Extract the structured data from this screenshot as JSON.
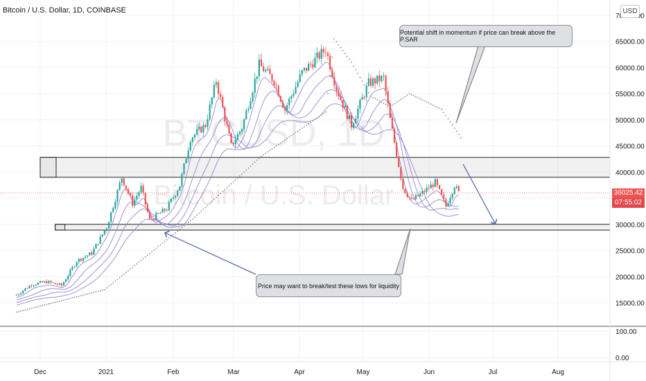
{
  "header": {
    "title": "Bitcoin / U.S. Dollar, 1D, COINBASE",
    "currency_badge": "USD"
  },
  "watermark": {
    "symbol": "BTCUSD, 1D",
    "name": "Bitcoin / U.S. Dollar"
  },
  "price_scale": {
    "upper_ticks": [
      "70000.00",
      "65000.00",
      "60000.00",
      "55000.00",
      "50000.00",
      "45000.00",
      "40000.00",
      "35000.00",
      "30000.00",
      "25000.00",
      "20000.00",
      "15000.00"
    ],
    "lower_ticks": [
      "100.00",
      "0.00"
    ],
    "last_price": "36025.42",
    "countdown": "07:55:02"
  },
  "time_axis": {
    "labels": [
      "Dec",
      "2021",
      "Feb",
      "Mar",
      "Apr",
      "May",
      "Jun",
      "Jul",
      "Aug"
    ]
  },
  "annotations": {
    "top_callout": "Potential shift in momentum if price can break above the P.SAR",
    "bottom_callout": "Price may want to break/test these lows for liquidity"
  },
  "colors": {
    "up": "#26a69a",
    "down": "#ef5350",
    "ema": "#8c7fd0",
    "psar": "#888888",
    "arrow": "#5b6bb0"
  },
  "chart_data": {
    "type": "candlestick",
    "title": "Bitcoin / U.S. Dollar, 1D, COINBASE",
    "ylim": [
      12000,
      72000
    ],
    "yticks": [
      15000,
      20000,
      25000,
      30000,
      35000,
      40000,
      45000,
      50000,
      55000,
      60000,
      65000,
      70000
    ],
    "x_range": [
      "2020-11-20",
      "2021-08-25"
    ],
    "last_price": 36025.42,
    "support_zones": [
      {
        "name": "",
        "from_date": "2020-12-01",
        "low": 39000,
        "high": 42800
      },
      {
        "name": "",
        "from_date": "2020-12-08",
        "low": 28900,
        "high": 30000
      }
    ],
    "projection_arrow": {
      "from": [
        "2021-06-16",
        41500
      ],
      "to": [
        "2021-07-01",
        30100
      ]
    },
    "price_path": [
      [
        "2020-11-20",
        16500
      ],
      [
        "2020-11-27",
        18500
      ],
      [
        "2020-12-04",
        19000
      ],
      [
        "2020-12-11",
        18300
      ],
      [
        "2020-12-18",
        23000
      ],
      [
        "2020-12-25",
        24500
      ],
      [
        "2021-01-01",
        29500
      ],
      [
        "2021-01-08",
        39000
      ],
      [
        "2021-01-13",
        34000
      ],
      [
        "2021-01-17",
        37000
      ],
      [
        "2021-01-21",
        30800
      ],
      [
        "2021-01-29",
        33000
      ],
      [
        "2021-02-04",
        37500
      ],
      [
        "2021-02-09",
        46500
      ],
      [
        "2021-02-16",
        49000
      ],
      [
        "2021-02-21",
        57500
      ],
      [
        "2021-02-28",
        45000
      ],
      [
        "2021-03-05",
        48500
      ],
      [
        "2021-03-13",
        60500
      ],
      [
        "2021-03-20",
        57500
      ],
      [
        "2021-03-25",
        52000
      ],
      [
        "2021-04-02",
        59000
      ],
      [
        "2021-04-13",
        63500
      ],
      [
        "2021-04-18",
        56000
      ],
      [
        "2021-04-25",
        49000
      ],
      [
        "2021-05-03",
        57000
      ],
      [
        "2021-05-10",
        58000
      ],
      [
        "2021-05-13",
        50000
      ],
      [
        "2021-05-19",
        37000
      ],
      [
        "2021-05-23",
        34500
      ],
      [
        "2021-05-28",
        36000
      ],
      [
        "2021-06-03",
        38000
      ],
      [
        "2021-06-08",
        33500
      ],
      [
        "2021-06-12",
        37500
      ],
      [
        "2021-06-14",
        36025
      ]
    ],
    "ema_ribbon_offsets": [
      -0.03,
      -0.06,
      -0.09,
      -0.12
    ],
    "psar_path": [
      [
        "2020-11-20",
        13200
      ],
      [
        "2020-12-31",
        17500
      ],
      [
        "2021-02-10",
        31000
      ],
      [
        "2021-03-14",
        43000
      ],
      [
        "2021-04-13",
        51500
      ],
      [
        "2021-04-17",
        65500
      ],
      [
        "2021-04-25",
        61000
      ],
      [
        "2021-05-04",
        54500
      ],
      [
        "2021-05-13",
        52500
      ],
      [
        "2021-05-22",
        55000
      ],
      [
        "2021-06-06",
        52000
      ],
      [
        "2021-06-16",
        46000
      ]
    ]
  }
}
